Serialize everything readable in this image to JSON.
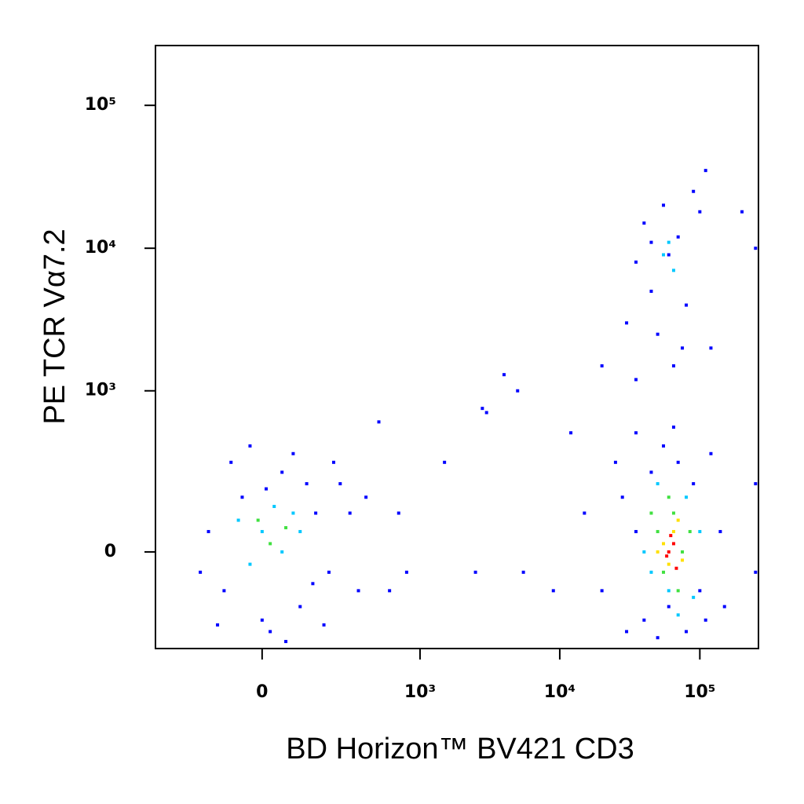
{
  "chart_data": {
    "type": "scatter",
    "x_label": "BD Horizon™ BV421  CD3",
    "y_label": "PE  TCR Vα7.2",
    "xscale": "logicle",
    "yscale": "logicle",
    "xlim": [
      -420,
      262144
    ],
    "ylim": [
      -340,
      262144
    ],
    "xticks": [
      0,
      {
        "value": 1000,
        "label": "10³"
      },
      {
        "value": 10000,
        "label": "10⁴"
      },
      {
        "value": 100000,
        "label": "10⁵"
      }
    ],
    "yticks": [
      0,
      {
        "value": 1000,
        "label": "10³"
      },
      {
        "value": 10000,
        "label": "10⁴"
      },
      {
        "value": 100000,
        "label": "10⁵"
      }
    ],
    "series": [
      {
        "color": "#0000ff",
        "x": [
          -100,
          -50,
          0,
          50,
          100,
          150,
          200,
          250,
          -150,
          -80,
          20,
          80,
          180,
          300,
          -120,
          120,
          60,
          -30,
          220,
          400,
          350,
          -180,
          10,
          140,
          500,
          700,
          800,
          1500,
          2800,
          3000,
          4000,
          5000,
          5500,
          600,
          2500,
          15000,
          20000,
          25000,
          30000,
          35000,
          40000,
          45000,
          50000,
          55000,
          60000,
          65000,
          70000,
          80000,
          90000,
          100000,
          120000,
          140000,
          35000,
          110000,
          28000,
          150000,
          250000,
          250000,
          12000,
          9000,
          30000,
          35000,
          40000,
          45000,
          50000,
          55000,
          60000,
          65000,
          70000,
          80000,
          90000,
          100000,
          110000,
          35000,
          75000,
          120000,
          45000,
          200000,
          250000,
          20000
        ],
        "values": [
          -100,
          150,
          -200,
          250,
          -150,
          100,
          -50,
          200,
          50,
          300,
          -250,
          350,
          -220,
          100,
          -220,
          200,
          -300,
          400,
          300,
          150,
          -100,
          -50,
          180,
          -80,
          600,
          100,
          -50,
          300,
          750,
          700,
          1300,
          1000,
          -50,
          -100,
          -50,
          100,
          -100,
          300,
          -250,
          500,
          -200,
          250,
          -280,
          400,
          -150,
          550,
          300,
          -250,
          200,
          -100,
          350,
          50,
          50,
          -200,
          150,
          -150,
          200,
          -50,
          500,
          -100,
          3000,
          8000,
          15000,
          5000,
          2500,
          20000,
          9000,
          1500,
          12000,
          4000,
          25000,
          18000,
          35000,
          1200,
          2000,
          2000,
          11000,
          18000,
          10000,
          1500
        ]
      },
      {
        "color": "#00c8ff",
        "x": [
          0,
          50,
          80,
          -30,
          30,
          100,
          -60,
          40000,
          80000,
          50000,
          60000,
          100000,
          45000,
          70000,
          90000,
          55000,
          65000,
          60000
        ],
        "values": [
          50,
          0,
          100,
          -30,
          120,
          50,
          80,
          0,
          150,
          200,
          -100,
          50,
          -50,
          -180,
          -120,
          9000,
          7000,
          11000
        ]
      },
      {
        "color": "#40e040",
        "x": [
          20,
          60,
          -10,
          50000,
          55000,
          65000,
          75000,
          45000,
          85000,
          60000,
          70000
        ],
        "values": [
          20,
          60,
          80,
          50,
          -50,
          100,
          0,
          100,
          50,
          150,
          -100
        ]
      },
      {
        "color": "#ffe000",
        "x": [
          55000,
          65000,
          60000,
          70000,
          50000,
          75000
        ],
        "values": [
          20,
          50,
          -30,
          80,
          0,
          -20
        ]
      },
      {
        "color": "#ff0000",
        "x": [
          60000,
          65000,
          58000,
          68000,
          62000
        ],
        "values": [
          0,
          20,
          -10,
          -40,
          40
        ]
      }
    ]
  }
}
